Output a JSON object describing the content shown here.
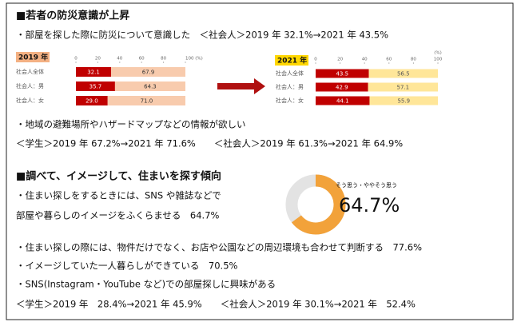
{
  "section1": {
    "title": "■若者の防災意識が上昇",
    "line1": "・部屋を探した際に防災について意識した　＜社会人＞2019 年 32.1%→2021 年 43.5%",
    "charts": [
      {
        "type": "bar",
        "label": "2019 年",
        "label_color": "#f4b183",
        "categories": [
          "社会人全体",
          "社会人：男",
          "社会人：女"
        ],
        "xlim": [
          0,
          100
        ],
        "xticks": [
          0,
          20,
          40,
          60,
          80,
          {
            "value": 100,
            "label": "100 (%)"
          }
        ],
        "series": [
          {
            "color": "#c00000",
            "label_color": "#ffffff",
            "values": [
              32.1,
              35.7,
              29.0
            ],
            "value_labels": [
              "32.1",
              "35.7",
              "29.0"
            ]
          },
          {
            "color": "#f8cbad",
            "label_color": "#333333",
            "values": [
              67.9,
              64.3,
              71.0
            ],
            "value_labels": [
              "67.9",
              "64.3",
              "71.0"
            ]
          }
        ]
      },
      {
        "type": "bar",
        "label": "2021 年",
        "label_color": "#ffd700",
        "unit": "(%)",
        "categories": [
          "社会人全体",
          "社会人：男",
          "社会人：女"
        ],
        "xlim": [
          0,
          100
        ],
        "xticks": [
          0,
          20,
          40,
          60,
          80,
          100
        ],
        "series": [
          {
            "color": "#c00000",
            "label_color": "#ffffff",
            "values": [
              43.5,
              42.9,
              44.1
            ]
          },
          {
            "color": "#ffe699",
            "label_color": "#555555",
            "values": [
              56.5,
              57.1,
              55.9
            ]
          }
        ]
      }
    ],
    "line2": "・地域の避難場所やハザードマップなどの情報が欲しい",
    "line3": "＜学生＞2019 年 67.2%→2021 年 71.6%　　＜社会人＞2019 年 61.3%→2021 年 64.9%"
  },
  "section2": {
    "title": "■調べて、イメージして、住まいを探す傾向",
    "line1": "・住まい探しをするときには、SNS や雑誌などで",
    "line2": "部屋や暮らしのイメージをふくらませる　64.7%",
    "donut": {
      "type": "pie",
      "label": "そう思う・ややそう思う",
      "values": [
        64.7
      ],
      "value_labels": [
        "64.7%"
      ],
      "colors": [
        "#f2a23a"
      ],
      "rest_color": "#e3e3e3"
    },
    "line3": "・住まい探しの際には、物件だけでなく、お店や公園などの周辺環境も合わせて判断する　77.6%",
    "line4": "・イメージしていた一人暮らしができている　70.5%",
    "line5": "・SNS(Instagram・YouTube など)での部屋探しに興味がある",
    "line6": "＜学生＞2019 年　28.4%→2021 年 45.9%　　＜社会人＞2019 年 30.1%→2021 年　52.4%"
  }
}
